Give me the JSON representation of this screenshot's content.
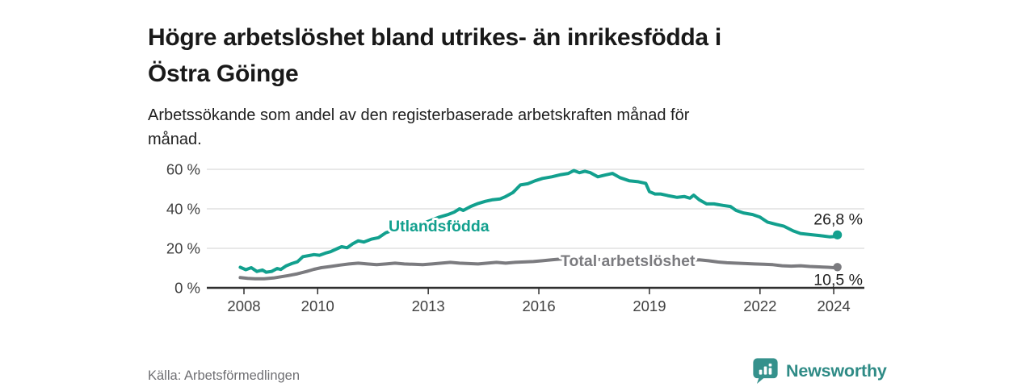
{
  "header": {
    "title_lines": [
      "Högre arbetslöshet bland utrikes- än inrikesfödda i",
      "Östra Göinge"
    ],
    "subtitle_lines": [
      "Arbetssökande som andel av den registerbaserade arbetskraften månad för",
      "månad."
    ]
  },
  "chart_data": {
    "type": "line",
    "title": "Högre arbetslöshet bland utrikes- än inrikesfödda i Östra Göinge",
    "subtitle": "Arbetssökande som andel av den registerbaserade arbetskraften månad för månad.",
    "xlabel": "",
    "ylabel": "",
    "grid": "horizontal",
    "legend_position": "inline-labels",
    "ylim": [
      0,
      62
    ],
    "xlim": [
      2007.0,
      2024.8
    ],
    "colors": {
      "utlandsfodda": "#12a08e",
      "total": "#7b7b7f",
      "gridline": "#d9d9d9",
      "axis": "#2f2f2f",
      "axis_text": "#404040",
      "end_label_text": "#1f1f1f"
    },
    "y_axis": {
      "ticks": [
        {
          "label": "0 %",
          "value": 0
        },
        {
          "label": "20 %",
          "value": 20
        },
        {
          "label": "40 %",
          "value": 40
        },
        {
          "label": "60 %",
          "value": 60
        }
      ]
    },
    "x_axis": {
      "ticks": [
        {
          "label": "2008",
          "value": 2008
        },
        {
          "label": "2010",
          "value": 2010
        },
        {
          "label": "2013",
          "value": 2013
        },
        {
          "label": "2016",
          "value": 2016
        },
        {
          "label": "2019",
          "value": 2019
        },
        {
          "label": "2022",
          "value": 2022
        },
        {
          "label": "2024",
          "value": 2024
        }
      ]
    },
    "series": [
      {
        "name": "Utlandsfödda",
        "color": "#12a08e",
        "end_label": "26,8 %",
        "end_value": 26.8,
        "points": [
          [
            2007.9,
            10.4
          ],
          [
            2008.05,
            9.2
          ],
          [
            2008.2,
            10.2
          ],
          [
            2008.35,
            8.3
          ],
          [
            2008.5,
            9.0
          ],
          [
            2008.6,
            7.9
          ],
          [
            2008.75,
            8.3
          ],
          [
            2008.9,
            9.8
          ],
          [
            2009.0,
            9.3
          ],
          [
            2009.15,
            11.2
          ],
          [
            2009.3,
            12.3
          ],
          [
            2009.45,
            13.2
          ],
          [
            2009.6,
            15.8
          ],
          [
            2009.75,
            16.3
          ],
          [
            2009.9,
            16.8
          ],
          [
            2010.05,
            16.5
          ],
          [
            2010.2,
            17.5
          ],
          [
            2010.35,
            18.3
          ],
          [
            2010.5,
            19.6
          ],
          [
            2010.65,
            20.8
          ],
          [
            2010.8,
            20.3
          ],
          [
            2010.95,
            22.3
          ],
          [
            2011.1,
            23.8
          ],
          [
            2011.25,
            23.2
          ],
          [
            2011.45,
            24.6
          ],
          [
            2011.65,
            25.4
          ],
          [
            2011.85,
            27.9
          ],
          [
            2012.05,
            29.2
          ],
          [
            2012.3,
            30.2
          ],
          [
            2012.55,
            31.2
          ],
          [
            2012.8,
            32.3
          ],
          [
            2013.05,
            34.0
          ],
          [
            2013.3,
            35.8
          ],
          [
            2013.55,
            37.2
          ],
          [
            2013.7,
            38.3
          ],
          [
            2013.85,
            40.0
          ],
          [
            2013.95,
            39.2
          ],
          [
            2014.15,
            41.2
          ],
          [
            2014.35,
            42.7
          ],
          [
            2014.55,
            43.8
          ],
          [
            2014.75,
            44.6
          ],
          [
            2014.95,
            45.0
          ],
          [
            2015.1,
            46.2
          ],
          [
            2015.3,
            48.3
          ],
          [
            2015.5,
            52.1
          ],
          [
            2015.7,
            52.7
          ],
          [
            2015.9,
            54.2
          ],
          [
            2016.1,
            55.4
          ],
          [
            2016.35,
            56.2
          ],
          [
            2016.6,
            57.3
          ],
          [
            2016.8,
            57.9
          ],
          [
            2016.95,
            59.4
          ],
          [
            2017.1,
            58.3
          ],
          [
            2017.25,
            59.0
          ],
          [
            2017.4,
            58.3
          ],
          [
            2017.6,
            56.2
          ],
          [
            2017.8,
            57.1
          ],
          [
            2018.0,
            57.9
          ],
          [
            2018.2,
            55.8
          ],
          [
            2018.45,
            54.2
          ],
          [
            2018.7,
            53.7
          ],
          [
            2018.9,
            52.9
          ],
          [
            2019.0,
            48.7
          ],
          [
            2019.15,
            47.5
          ],
          [
            2019.3,
            47.5
          ],
          [
            2019.5,
            46.7
          ],
          [
            2019.75,
            45.8
          ],
          [
            2019.95,
            46.2
          ],
          [
            2020.1,
            45.4
          ],
          [
            2020.2,
            46.9
          ],
          [
            2020.35,
            44.6
          ],
          [
            2020.55,
            42.5
          ],
          [
            2020.75,
            42.5
          ],
          [
            2021.0,
            41.7
          ],
          [
            2021.2,
            41.2
          ],
          [
            2021.35,
            39.2
          ],
          [
            2021.55,
            37.9
          ],
          [
            2021.8,
            37.1
          ],
          [
            2022.0,
            35.8
          ],
          [
            2022.2,
            33.3
          ],
          [
            2022.45,
            32.1
          ],
          [
            2022.65,
            31.2
          ],
          [
            2022.9,
            28.8
          ],
          [
            2023.1,
            27.5
          ],
          [
            2023.3,
            27.1
          ],
          [
            2023.5,
            26.7
          ],
          [
            2023.7,
            26.3
          ],
          [
            2023.9,
            25.8
          ],
          [
            2024.05,
            26.0
          ],
          [
            2024.1,
            26.8
          ]
        ]
      },
      {
        "name": "Total arbetslöshet",
        "color": "#7b7b7f",
        "end_label": "10,5 %",
        "end_value": 10.5,
        "points": [
          [
            2007.9,
            5.2
          ],
          [
            2008.1,
            4.8
          ],
          [
            2008.3,
            4.6
          ],
          [
            2008.55,
            4.6
          ],
          [
            2008.8,
            5.0
          ],
          [
            2009.0,
            5.6
          ],
          [
            2009.2,
            6.2
          ],
          [
            2009.45,
            7.1
          ],
          [
            2009.7,
            8.3
          ],
          [
            2009.9,
            9.4
          ],
          [
            2010.1,
            10.2
          ],
          [
            2010.35,
            10.8
          ],
          [
            2010.6,
            11.5
          ],
          [
            2010.85,
            12.1
          ],
          [
            2011.1,
            12.5
          ],
          [
            2011.35,
            12.1
          ],
          [
            2011.6,
            11.7
          ],
          [
            2011.85,
            12.1
          ],
          [
            2012.1,
            12.5
          ],
          [
            2012.35,
            12.1
          ],
          [
            2012.6,
            11.9
          ],
          [
            2012.85,
            11.7
          ],
          [
            2013.1,
            12.1
          ],
          [
            2013.35,
            12.5
          ],
          [
            2013.6,
            12.9
          ],
          [
            2013.85,
            12.5
          ],
          [
            2014.1,
            12.3
          ],
          [
            2014.35,
            12.1
          ],
          [
            2014.6,
            12.5
          ],
          [
            2014.85,
            12.9
          ],
          [
            2015.1,
            12.5
          ],
          [
            2015.35,
            12.9
          ],
          [
            2015.6,
            13.1
          ],
          [
            2015.85,
            13.3
          ],
          [
            2016.1,
            13.7
          ],
          [
            2016.35,
            14.2
          ],
          [
            2016.6,
            14.6
          ],
          [
            2016.85,
            14.2
          ],
          [
            2017.1,
            13.9
          ],
          [
            2017.35,
            14.2
          ],
          [
            2017.6,
            14.4
          ],
          [
            2017.85,
            14.0
          ],
          [
            2018.1,
            13.7
          ],
          [
            2018.35,
            14.0
          ],
          [
            2018.6,
            14.2
          ],
          [
            2018.85,
            13.9
          ],
          [
            2019.1,
            14.2
          ],
          [
            2019.35,
            13.7
          ],
          [
            2019.6,
            13.9
          ],
          [
            2019.85,
            14.2
          ],
          [
            2020.1,
            13.9
          ],
          [
            2020.35,
            14.2
          ],
          [
            2020.6,
            13.7
          ],
          [
            2020.85,
            13.1
          ],
          [
            2021.1,
            12.7
          ],
          [
            2021.35,
            12.5
          ],
          [
            2021.6,
            12.3
          ],
          [
            2021.85,
            12.1
          ],
          [
            2022.1,
            11.9
          ],
          [
            2022.35,
            11.7
          ],
          [
            2022.6,
            11.2
          ],
          [
            2022.85,
            11.0
          ],
          [
            2023.1,
            11.2
          ],
          [
            2023.35,
            10.8
          ],
          [
            2023.6,
            10.6
          ],
          [
            2023.85,
            10.4
          ],
          [
            2024.0,
            10.2
          ],
          [
            2024.1,
            10.5
          ]
        ]
      }
    ]
  },
  "footer": {
    "source": "Källa: Arbetsförmedlingen",
    "brand_name": "Newsworthy",
    "brand_color": "#2f8b86"
  }
}
